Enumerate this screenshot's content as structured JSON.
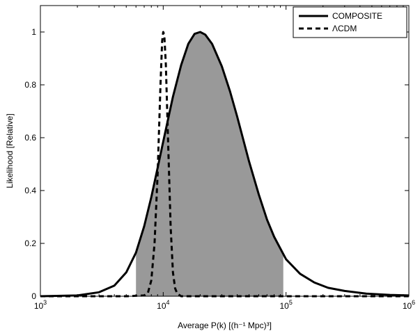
{
  "chart_data": {
    "type": "line",
    "xlabel": "Average P(k) [(h⁻¹ Mpc)³]",
    "ylabel": "Likelihood [Relative]",
    "xscale": "log",
    "xlim": [
      1000,
      1000000
    ],
    "ylim": [
      0,
      1.1
    ],
    "grid": false,
    "legend_position": "top-right",
    "x_ticks": [
      {
        "value": 1000,
        "base": "10",
        "exp": "3"
      },
      {
        "value": 10000,
        "base": "10",
        "exp": "4"
      },
      {
        "value": 100000,
        "base": "10",
        "exp": "5"
      },
      {
        "value": 1000000,
        "base": "10",
        "exp": "6"
      }
    ],
    "y_ticks": [
      {
        "value": 0,
        "label": "0"
      },
      {
        "value": 0.2,
        "label": "0.2"
      },
      {
        "value": 0.4,
        "label": "0.4"
      },
      {
        "value": 0.6,
        "label": "0.6"
      },
      {
        "value": 0.8,
        "label": "0.8"
      },
      {
        "value": 1.0,
        "label": "1"
      }
    ],
    "series": [
      {
        "name": "COMPOSITE",
        "style": "solid",
        "color": "#000000",
        "x": [
          1000,
          2000,
          3000,
          4000,
          5000,
          6000,
          7000,
          8000,
          9000,
          10000,
          12000,
          14000,
          16000,
          18000,
          20000,
          22000,
          25000,
          30000,
          35000,
          40000,
          50000,
          60000,
          70000,
          80000,
          100000,
          130000,
          170000,
          220000,
          300000,
          450000,
          700000,
          1000000
        ],
        "y": [
          0.0,
          0.003,
          0.015,
          0.04,
          0.09,
          0.165,
          0.265,
          0.375,
          0.485,
          0.585,
          0.755,
          0.875,
          0.955,
          0.993,
          1.0,
          0.99,
          0.955,
          0.87,
          0.775,
          0.68,
          0.51,
          0.385,
          0.29,
          0.225,
          0.14,
          0.085,
          0.052,
          0.032,
          0.02,
          0.01,
          0.005,
          0.003
        ]
      },
      {
        "name": "ΛCDM",
        "style": "dashed",
        "color": "#000000",
        "x": [
          1000,
          5000,
          7000,
          7500,
          8000,
          8500,
          9000,
          9500,
          9800,
          10000,
          10200,
          10500,
          11000,
          11500,
          12000,
          12500,
          13000,
          14000,
          20000,
          1000000
        ],
        "y": [
          0.0,
          0.0,
          0.003,
          0.012,
          0.06,
          0.2,
          0.46,
          0.8,
          0.965,
          1.0,
          0.99,
          0.88,
          0.56,
          0.26,
          0.09,
          0.03,
          0.01,
          0.0,
          0.0,
          0.0
        ]
      }
    ],
    "shaded_region": {
      "series": "COMPOSITE",
      "x_from": 6000,
      "x_to": 95000,
      "color": "#999999"
    }
  }
}
